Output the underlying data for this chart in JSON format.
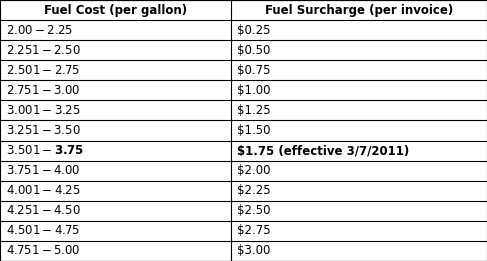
{
  "col1_header": "Fuel Cost (per gallon)",
  "col2_header": "Fuel Surcharge (per invoice)",
  "rows": [
    [
      "$2.00-$2.25",
      "$0.25"
    ],
    [
      "$2.251-$2.50",
      "$0.50"
    ],
    [
      "$2.501-$2.75",
      "$0.75"
    ],
    [
      "$2.751-$3.00",
      "$1.00"
    ],
    [
      "$3.001-$3.25",
      "$1.25"
    ],
    [
      "$3.251-$3.50",
      "$1.50"
    ],
    [
      "$3.501-$3.75",
      "$1.75 (effective 3/7/2011)"
    ],
    [
      "$3.751-$4.00",
      "$2.00"
    ],
    [
      "$4.001-$4.25",
      "$2.25"
    ],
    [
      "$4.251-$4.50",
      "$2.50"
    ],
    [
      "$4.501-$4.75",
      "$2.75"
    ],
    [
      "$4.751-$5.00",
      "$3.00"
    ]
  ],
  "bold_row_index": 6,
  "border_color": "#000000",
  "col_split": 0.475,
  "fig_bg": "#ffffff",
  "header_fontsize": 8.5,
  "cell_fontsize": 8.5,
  "text_color": "#000000",
  "figwidth": 4.87,
  "figheight": 2.61,
  "dpi": 100
}
